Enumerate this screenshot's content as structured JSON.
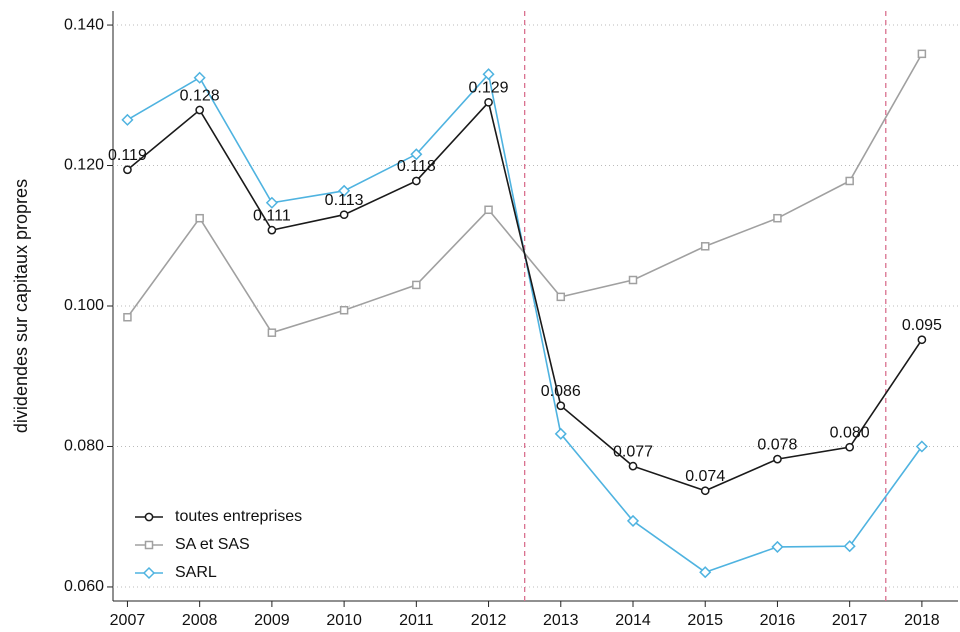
{
  "chart_data": {
    "type": "line",
    "ylabel": "dividendes sur capitaux propres",
    "x": [
      2007,
      2008,
      2009,
      2010,
      2011,
      2012,
      2013,
      2014,
      2015,
      2016,
      2017,
      2018
    ],
    "xlim": [
      2006.8,
      2018.5
    ],
    "xticks": [
      2007,
      2008,
      2009,
      2010,
      2011,
      2012,
      2013,
      2014,
      2015,
      2016,
      2017,
      2018
    ],
    "ylim": [
      0.058,
      0.142
    ],
    "yticks": [
      {
        "value": 0.06,
        "label": "0.060"
      },
      {
        "value": 0.08,
        "label": "0.080"
      },
      {
        "value": 0.1,
        "label": "0.100"
      },
      {
        "value": 0.12,
        "label": "0.120"
      },
      {
        "value": 0.14,
        "label": "0.140"
      }
    ],
    "grid": true,
    "legend": "lower left",
    "vlines": [
      2012.5,
      2017.5
    ],
    "vline_color": "#d9708f",
    "series": [
      {
        "name": "toutes entreprises",
        "color": "#1a1a1a",
        "marker": "circle",
        "values": [
          0.1194,
          0.1279,
          0.1108,
          0.113,
          0.1178,
          0.129,
          0.0858,
          0.0772,
          0.0737,
          0.0782,
          0.0799,
          0.0952
        ],
        "value_labels": [
          "0.119",
          "0.128",
          "0.111",
          "0.113",
          "0.118",
          "0.129",
          "0.086",
          "0.077",
          "0.074",
          "0.078",
          "0.080",
          "0.095"
        ]
      },
      {
        "name": "SA et SAS",
        "color": "#a0a0a0",
        "marker": "square",
        "values": [
          0.0984,
          0.1125,
          0.0962,
          0.0994,
          0.103,
          0.1137,
          0.1013,
          0.1037,
          0.1085,
          0.1125,
          0.1178,
          0.1359
        ]
      },
      {
        "name": "SARL",
        "color": "#4fb3e0",
        "marker": "diamond",
        "values": [
          0.1265,
          0.1325,
          0.1147,
          0.1164,
          0.1216,
          0.133,
          0.0818,
          0.0694,
          0.0621,
          0.0657,
          0.0658,
          0.08
        ]
      }
    ]
  }
}
